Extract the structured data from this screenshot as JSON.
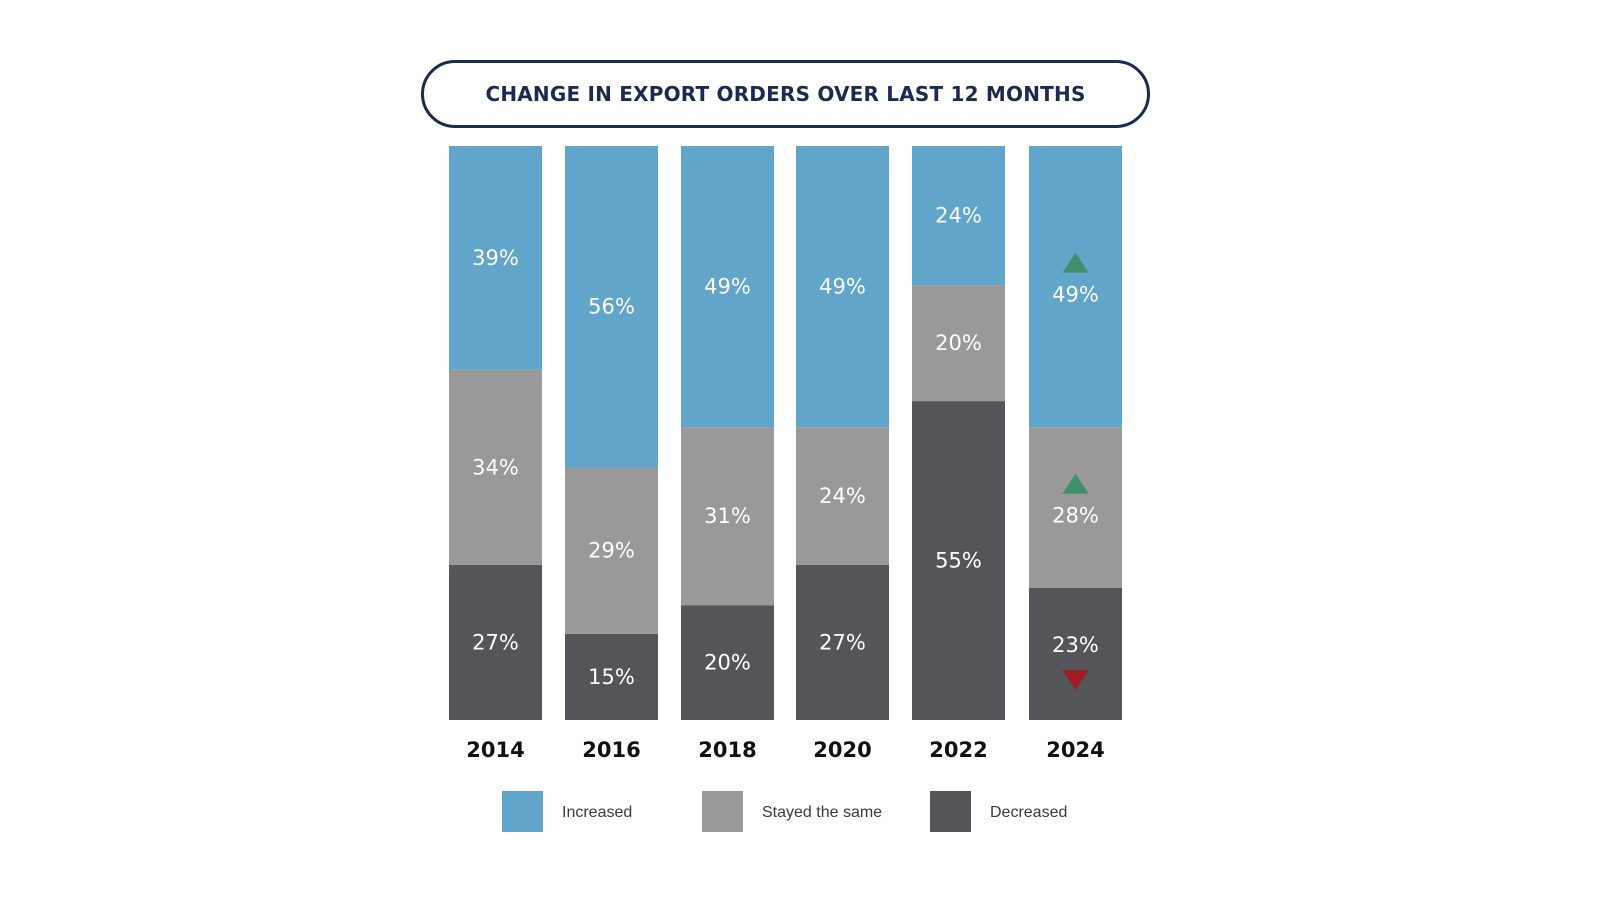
{
  "chart_data": {
    "type": "bar",
    "stacked": true,
    "title": "CHANGE IN EXPORT ORDERS OVER LAST 12 MONTHS",
    "categories": [
      "2014",
      "2016",
      "2018",
      "2020",
      "2022",
      "2024"
    ],
    "series": [
      {
        "name": "Decreased",
        "color": "#545559",
        "values": [
          27,
          15,
          20,
          27,
          55,
          23
        ]
      },
      {
        "name": "Stayed the same",
        "color": "#999999",
        "values": [
          34,
          29,
          31,
          24,
          20,
          28
        ]
      },
      {
        "name": "Increased",
        "color": "#62a5ca",
        "values": [
          39,
          56,
          49,
          49,
          24,
          49
        ]
      }
    ],
    "value_suffix": "%",
    "indicators": [
      {
        "category": "2024",
        "series": "Increased",
        "direction": "up",
        "color": "#3f8f6b"
      },
      {
        "category": "2024",
        "series": "Stayed the same",
        "direction": "up",
        "color": "#3f8f6b"
      },
      {
        "category": "2024",
        "series": "Decreased",
        "direction": "down",
        "color": "#a01c24"
      }
    ],
    "legend": [
      {
        "label": "Increased",
        "color": "#62a5ca"
      },
      {
        "label": "Stayed the same",
        "color": "#999999"
      },
      {
        "label": "Decreased",
        "color": "#545559"
      }
    ],
    "legend_position": "bottom"
  }
}
